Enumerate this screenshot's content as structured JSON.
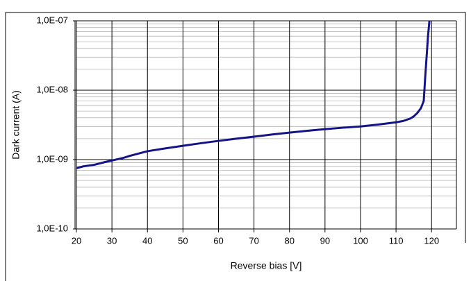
{
  "chart_data": {
    "type": "line",
    "x_label": "Reverse bias [V]",
    "y_label": "Dark current  (A)",
    "log_y": true,
    "grid": true,
    "minor_grid": true,
    "xlim": [
      20,
      127
    ],
    "xticks": [
      20,
      30,
      40,
      50,
      60,
      70,
      80,
      90,
      100,
      110,
      120
    ],
    "ylim": [
      1e-10,
      1e-07
    ],
    "yticks": [
      {
        "value": 1e-10,
        "label": "1,0E-10"
      },
      {
        "value": 1e-09,
        "label": "1,0E-09"
      },
      {
        "value": 1e-08,
        "label": "1,0E-08"
      },
      {
        "value": 1e-07,
        "label": "1,0E-07"
      }
    ],
    "series": [
      {
        "color": "#141487",
        "x": [
          20,
          22,
          25,
          28,
          30,
          33,
          35,
          40,
          45,
          50,
          55,
          60,
          65,
          70,
          75,
          80,
          85,
          90,
          95,
          100,
          105,
          110,
          112,
          114,
          115,
          116,
          117,
          117.8,
          118.2,
          118.6,
          119.0,
          119.4
        ],
        "values": [
          7.5e-10,
          8e-10,
          8.4e-10,
          9.2e-10,
          9.7e-10,
          1.05e-09,
          1.13e-09,
          1.32e-09,
          1.45e-09,
          1.58e-09,
          1.72e-09,
          1.86e-09,
          2e-09,
          2.14e-09,
          2.3e-09,
          2.45e-09,
          2.6e-09,
          2.75e-09,
          2.88e-09,
          3e-09,
          3.2e-09,
          3.45e-09,
          3.6e-09,
          3.9e-09,
          4.2e-09,
          4.7e-09,
          5.5e-09,
          7e-09,
          1.5e-08,
          3e-08,
          6e-08,
          1e-07
        ]
      }
    ]
  }
}
